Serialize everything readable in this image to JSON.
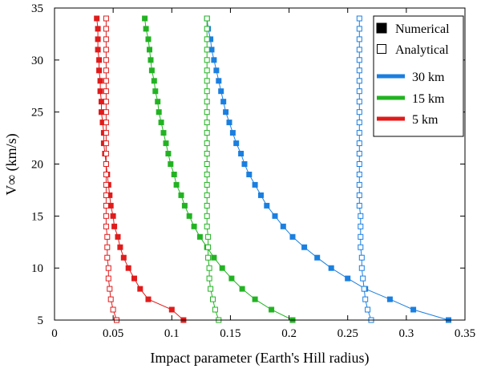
{
  "chart_data": {
    "type": "scatter",
    "title": "",
    "xlabel": "Impact parameter (Earth's Hill radius)",
    "ylabel": "V∞ (km/s)",
    "xlim": [
      0,
      0.35
    ],
    "ylim": [
      5,
      35
    ],
    "xticks": [
      0,
      0.05,
      0.1,
      0.15,
      0.2,
      0.25,
      0.3,
      0.35
    ],
    "xtick_labels": [
      "0",
      "0.05",
      "0.1",
      "0.15",
      "0.2",
      "0.25",
      "0.3",
      "0.35"
    ],
    "yticks": [
      5,
      10,
      15,
      20,
      25,
      30,
      35
    ],
    "ytick_labels": [
      "5",
      "10",
      "15",
      "20",
      "25",
      "30",
      "35"
    ],
    "legend": {
      "position": "top-right",
      "marker_entries": [
        {
          "label": "Numerical",
          "style": "filled"
        },
        {
          "label": "Analytical",
          "style": "open"
        }
      ],
      "color_entries": [
        {
          "label": "30 km",
          "color": "#1a7fe0"
        },
        {
          "label": "15 km",
          "color": "#22b322"
        },
        {
          "label": "5 km",
          "color": "#e01b1b"
        }
      ]
    },
    "v": [
      5,
      6,
      7,
      8,
      9,
      10,
      11,
      12,
      13,
      14,
      15,
      16,
      17,
      18,
      19,
      20,
      21,
      22,
      23,
      24,
      25,
      26,
      27,
      28,
      29,
      30,
      31,
      32,
      33,
      34
    ],
    "series": [
      {
        "name": "30 km Numerical",
        "color": "#1a7fe0",
        "marker": "filled",
        "x": [
          0.336,
          0.306,
          0.286,
          0.265,
          0.25,
          0.236,
          0.224,
          0.213,
          0.203,
          0.195,
          0.188,
          0.181,
          0.176,
          0.171,
          0.166,
          0.162,
          0.159,
          0.155,
          0.152,
          0.149,
          0.146,
          0.144,
          0.142,
          0.14,
          0.138,
          0.136,
          0.134,
          0.133,
          0.131,
          0.13
        ]
      },
      {
        "name": "30 km Analytical",
        "color": "#1a7fe0",
        "marker": "open",
        "x": [
          0.27,
          0.267,
          0.265,
          0.264,
          0.263,
          0.262,
          0.262,
          0.261,
          0.261,
          0.261,
          0.261,
          0.26,
          0.26,
          0.26,
          0.26,
          0.26,
          0.26,
          0.26,
          0.26,
          0.26,
          0.26,
          0.26,
          0.26,
          0.26,
          0.26,
          0.26,
          0.26,
          0.26,
          0.26,
          0.26
        ]
      },
      {
        "name": "15 km Numerical",
        "color": "#22b322",
        "marker": "filled",
        "x": [
          0.203,
          0.185,
          0.171,
          0.16,
          0.151,
          0.143,
          0.136,
          0.13,
          0.124,
          0.119,
          0.115,
          0.111,
          0.108,
          0.104,
          0.102,
          0.099,
          0.097,
          0.095,
          0.093,
          0.091,
          0.089,
          0.088,
          0.086,
          0.085,
          0.083,
          0.082,
          0.081,
          0.08,
          0.078,
          0.077
        ]
      },
      {
        "name": "15 km Analytical",
        "color": "#22b322",
        "marker": "open",
        "x": [
          0.14,
          0.137,
          0.135,
          0.133,
          0.132,
          0.132,
          0.131,
          0.131,
          0.131,
          0.13,
          0.13,
          0.13,
          0.13,
          0.13,
          0.13,
          0.13,
          0.13,
          0.13,
          0.13,
          0.13,
          0.13,
          0.13,
          0.13,
          0.13,
          0.13,
          0.13,
          0.13,
          0.13,
          0.13,
          0.13
        ]
      },
      {
        "name": "5 km Numerical",
        "color": "#e01b1b",
        "marker": "filled",
        "x": [
          0.11,
          0.1,
          0.08,
          0.073,
          0.068,
          0.063,
          0.059,
          0.056,
          0.054,
          0.051,
          0.05,
          0.048,
          0.047,
          0.046,
          0.045,
          0.044,
          0.043,
          0.042,
          0.042,
          0.041,
          0.04,
          0.04,
          0.039,
          0.039,
          0.038,
          0.038,
          0.037,
          0.037,
          0.037,
          0.036
        ]
      },
      {
        "name": "5 km Analytical",
        "color": "#e01b1b",
        "marker": "open",
        "x": [
          0.053,
          0.05,
          0.048,
          0.047,
          0.046,
          0.046,
          0.045,
          0.045,
          0.045,
          0.044,
          0.044,
          0.044,
          0.044,
          0.044,
          0.044,
          0.044,
          0.044,
          0.044,
          0.044,
          0.044,
          0.044,
          0.044,
          0.044,
          0.044,
          0.044,
          0.044,
          0.044,
          0.044,
          0.044,
          0.044
        ]
      }
    ]
  }
}
